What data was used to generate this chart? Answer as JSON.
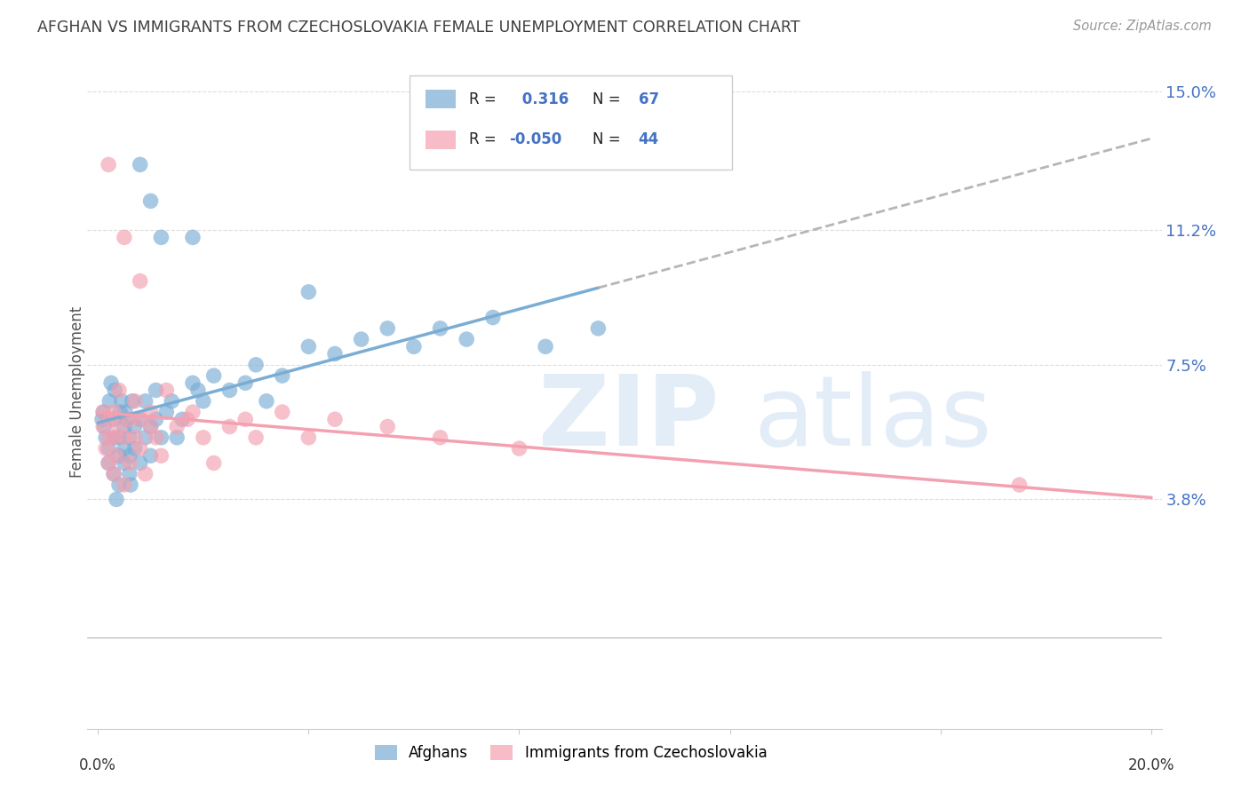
{
  "title": "AFGHAN VS IMMIGRANTS FROM CZECHOSLOVAKIA FEMALE UNEMPLOYMENT CORRELATION CHART",
  "source": "Source: ZipAtlas.com",
  "ylabel": "Female Unemployment",
  "afghans_R": 0.316,
  "afghans_N": 67,
  "czech_R": -0.05,
  "czech_N": 44,
  "afghan_color": "#7aadd4",
  "czech_color": "#f4a0b0",
  "legend_label_1": "Afghans",
  "legend_label_2": "Immigrants from Czechoslovakia",
  "xlim": [
    -0.002,
    0.202
  ],
  "ylim": [
    -0.025,
    0.16
  ],
  "y_tick_vals": [
    0.038,
    0.075,
    0.112,
    0.15
  ],
  "y_tick_labels": [
    "3.8%",
    "7.5%",
    "11.2%",
    "15.0%"
  ],
  "x_tick_vals": [
    0.0,
    0.04,
    0.08,
    0.12,
    0.16,
    0.2
  ],
  "background_color": "#FFFFFF",
  "grid_color": "#DDDDDD",
  "axis_label_color": "#4472C4",
  "title_color": "#404040",
  "afghans_x": [
    0.0008,
    0.001,
    0.0012,
    0.0015,
    0.002,
    0.002,
    0.0022,
    0.0025,
    0.003,
    0.003,
    0.003,
    0.0032,
    0.0035,
    0.004,
    0.004,
    0.004,
    0.0042,
    0.0045,
    0.005,
    0.005,
    0.005,
    0.0052,
    0.0055,
    0.006,
    0.006,
    0.006,
    0.0062,
    0.0065,
    0.007,
    0.007,
    0.008,
    0.008,
    0.009,
    0.009,
    0.01,
    0.01,
    0.011,
    0.011,
    0.012,
    0.013,
    0.014,
    0.015,
    0.016,
    0.018,
    0.019,
    0.02,
    0.022,
    0.025,
    0.028,
    0.03,
    0.032,
    0.035,
    0.04,
    0.045,
    0.05,
    0.055,
    0.06,
    0.065,
    0.07,
    0.075,
    0.085,
    0.095,
    0.01,
    0.012,
    0.008,
    0.018,
    0.04
  ],
  "afghans_y": [
    0.06,
    0.062,
    0.058,
    0.055,
    0.048,
    0.052,
    0.065,
    0.07,
    0.055,
    0.06,
    0.045,
    0.068,
    0.038,
    0.05,
    0.055,
    0.042,
    0.062,
    0.065,
    0.048,
    0.058,
    0.052,
    0.062,
    0.06,
    0.045,
    0.05,
    0.055,
    0.042,
    0.065,
    0.052,
    0.058,
    0.048,
    0.06,
    0.055,
    0.065,
    0.05,
    0.058,
    0.06,
    0.068,
    0.055,
    0.062,
    0.065,
    0.055,
    0.06,
    0.07,
    0.068,
    0.065,
    0.072,
    0.068,
    0.07,
    0.075,
    0.065,
    0.072,
    0.08,
    0.078,
    0.082,
    0.085,
    0.08,
    0.085,
    0.082,
    0.088,
    0.08,
    0.085,
    0.12,
    0.11,
    0.13,
    0.11,
    0.095
  ],
  "czech_x": [
    0.001,
    0.001,
    0.0015,
    0.002,
    0.002,
    0.0025,
    0.003,
    0.003,
    0.003,
    0.0035,
    0.004,
    0.004,
    0.005,
    0.005,
    0.006,
    0.006,
    0.007,
    0.007,
    0.008,
    0.008,
    0.009,
    0.01,
    0.01,
    0.011,
    0.012,
    0.013,
    0.015,
    0.017,
    0.018,
    0.02,
    0.022,
    0.025,
    0.028,
    0.03,
    0.035,
    0.04,
    0.045,
    0.055,
    0.065,
    0.08,
    0.005,
    0.008,
    0.175,
    0.002
  ],
  "czech_y": [
    0.058,
    0.062,
    0.052,
    0.055,
    0.048,
    0.06,
    0.045,
    0.055,
    0.062,
    0.05,
    0.058,
    0.068,
    0.042,
    0.055,
    0.06,
    0.048,
    0.065,
    0.055,
    0.052,
    0.06,
    0.045,
    0.058,
    0.062,
    0.055,
    0.05,
    0.068,
    0.058,
    0.06,
    0.062,
    0.055,
    0.048,
    0.058,
    0.06,
    0.055,
    0.062,
    0.055,
    0.06,
    0.058,
    0.055,
    0.052,
    0.11,
    0.098,
    0.042,
    0.13
  ],
  "afghan_line_solid_end": 0.095,
  "afghan_line_dashed_start": 0.095
}
